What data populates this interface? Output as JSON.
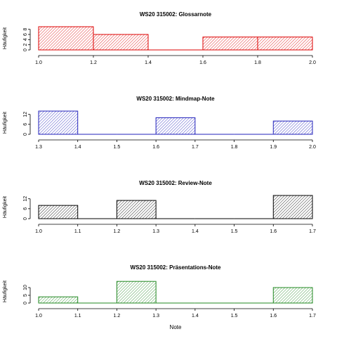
{
  "figure": {
    "xlabel": "Note"
  },
  "chart_data": [
    {
      "type": "bar",
      "title": "WS20 315002: Glossarnote",
      "ylabel": "Häufigkeit",
      "color": "#dd0000",
      "xlim": [
        1.0,
        2.0
      ],
      "xticks": [
        "1.0",
        "1.2",
        "1.4",
        "1.6",
        "1.8",
        "2.0"
      ],
      "ylim": [
        0,
        9
      ],
      "yticks": [
        "0",
        "2",
        "4",
        "6",
        "8"
      ],
      "bins": [
        {
          "x0": 1.0,
          "x1": 1.2,
          "count": 9
        },
        {
          "x0": 1.2,
          "x1": 1.4,
          "count": 6
        },
        {
          "x0": 1.4,
          "x1": 1.6,
          "count": 0
        },
        {
          "x0": 1.6,
          "x1": 1.8,
          "count": 5
        },
        {
          "x0": 1.8,
          "x1": 2.0,
          "count": 5
        }
      ]
    },
    {
      "type": "bar",
      "title": "WS20 315002: Mindmap-Note",
      "ylabel": "Häufigkeit",
      "color": "#2222bb",
      "xlim": [
        1.3,
        2.0
      ],
      "xticks": [
        "1.3",
        "1.4",
        "1.5",
        "1.6",
        "1.7",
        "1.8",
        "1.9",
        "2.0"
      ],
      "ylim": [
        0,
        14
      ],
      "yticks": [
        "0",
        "6",
        "12"
      ],
      "bins": [
        {
          "x0": 1.3,
          "x1": 1.4,
          "count": 14
        },
        {
          "x0": 1.4,
          "x1": 1.5,
          "count": 0
        },
        {
          "x0": 1.5,
          "x1": 1.6,
          "count": 0
        },
        {
          "x0": 1.6,
          "x1": 1.7,
          "count": 10
        },
        {
          "x0": 1.7,
          "x1": 1.8,
          "count": 0
        },
        {
          "x0": 1.8,
          "x1": 1.9,
          "count": 0
        },
        {
          "x0": 1.9,
          "x1": 2.0,
          "count": 8
        }
      ]
    },
    {
      "type": "bar",
      "title": "WS20 315002: Review-Note",
      "ylabel": "Häufigkeit",
      "color": "#000000",
      "xlim": [
        1.0,
        1.7
      ],
      "xticks": [
        "1.0",
        "1.1",
        "1.2",
        "1.3",
        "1.4",
        "1.5",
        "1.6",
        "1.7"
      ],
      "ylim": [
        0,
        14
      ],
      "yticks": [
        "0",
        "6",
        "12"
      ],
      "bins": [
        {
          "x0": 1.0,
          "x1": 1.1,
          "count": 8
        },
        {
          "x0": 1.1,
          "x1": 1.2,
          "count": 0
        },
        {
          "x0": 1.2,
          "x1": 1.3,
          "count": 11
        },
        {
          "x0": 1.3,
          "x1": 1.4,
          "count": 0
        },
        {
          "x0": 1.4,
          "x1": 1.5,
          "count": 0
        },
        {
          "x0": 1.5,
          "x1": 1.6,
          "count": 0
        },
        {
          "x0": 1.6,
          "x1": 1.7,
          "count": 14
        }
      ]
    },
    {
      "type": "bar",
      "title": "WS20 315002: Präsentations-Note",
      "ylabel": "Häufigkeit",
      "color": "#228822",
      "xlim": [
        1.0,
        1.7
      ],
      "xticks": [
        "1.0",
        "1.1",
        "1.2",
        "1.3",
        "1.4",
        "1.5",
        "1.6",
        "1.7"
      ],
      "ylim": [
        0,
        15
      ],
      "yticks": [
        "0",
        "5",
        "10"
      ],
      "bins": [
        {
          "x0": 1.0,
          "x1": 1.1,
          "count": 4
        },
        {
          "x0": 1.1,
          "x1": 1.2,
          "count": 0
        },
        {
          "x0": 1.2,
          "x1": 1.3,
          "count": 14
        },
        {
          "x0": 1.3,
          "x1": 1.4,
          "count": 0
        },
        {
          "x0": 1.4,
          "x1": 1.5,
          "count": 0
        },
        {
          "x0": 1.5,
          "x1": 1.6,
          "count": 0
        },
        {
          "x0": 1.6,
          "x1": 1.7,
          "count": 10
        }
      ]
    }
  ]
}
